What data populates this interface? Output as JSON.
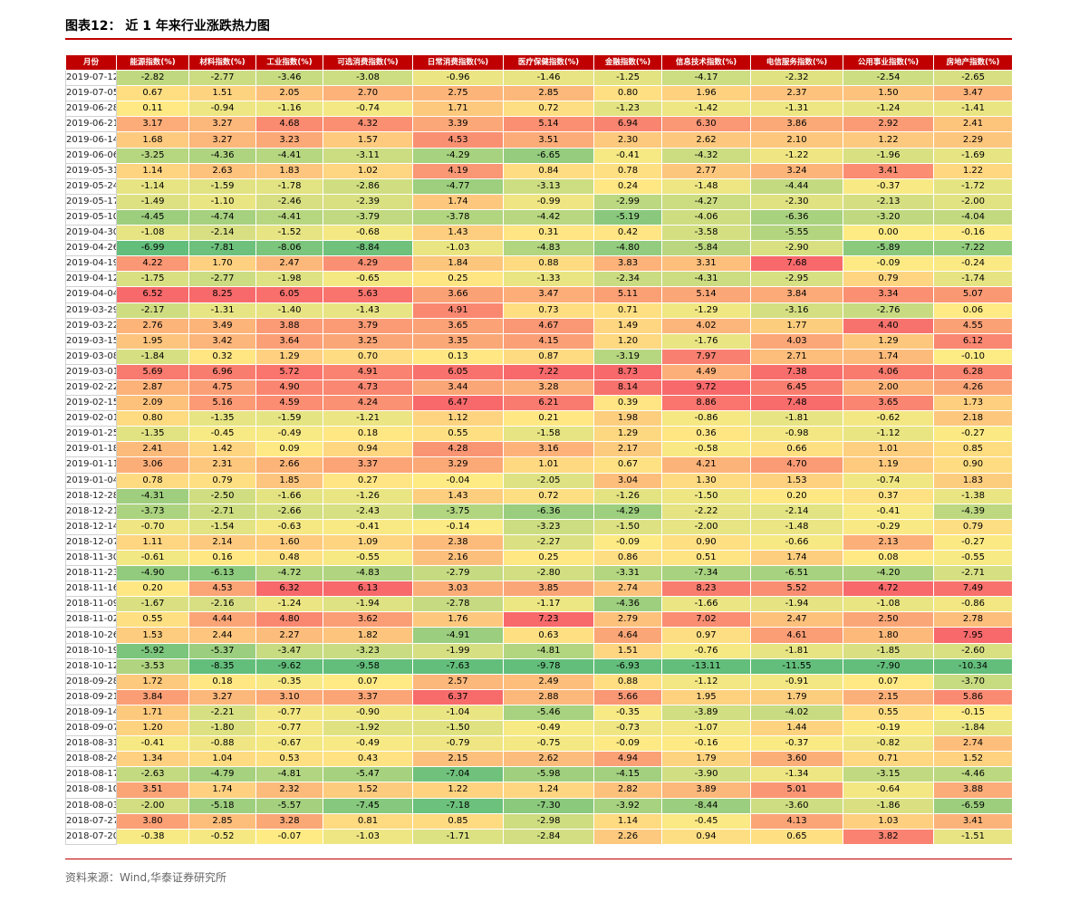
{
  "header": {
    "title": "图表12：  近 1 年来行业涨跌热力图"
  },
  "table": {
    "header": [
      "月份",
      "能源指数(%)",
      "材料指数(%)",
      "工业指数(%)",
      "可选消费指数(%)",
      "日常消费指数(%)",
      "医疗保健指数(%)",
      "金融指数(%)",
      "信息技术指数(%)",
      "电信服务指数(%)",
      "公用事业指数(%)",
      "房地产指数(%)"
    ],
    "rows": [
      [
        "2019-07-12",
        "-2.82",
        "-2.77",
        "-3.46",
        "-3.08",
        "-0.96",
        "-1.46",
        "-1.25",
        "-4.17",
        "-2.32",
        "-2.54",
        "-2.65"
      ],
      [
        "2019-07-05",
        "0.67",
        "1.51",
        "2.05",
        "2.70",
        "2.75",
        "2.85",
        "0.80",
        "1.96",
        "2.37",
        "1.50",
        "3.47"
      ],
      [
        "2019-06-28",
        "0.11",
        "-0.94",
        "-1.16",
        "-0.74",
        "1.71",
        "0.72",
        "-1.23",
        "-1.42",
        "-1.31",
        "-1.24",
        "-1.41"
      ],
      [
        "2019-06-21",
        "3.17",
        "3.27",
        "4.68",
        "4.32",
        "3.39",
        "5.14",
        "6.94",
        "6.30",
        "3.86",
        "2.92",
        "2.41"
      ],
      [
        "2019-06-14",
        "1.68",
        "3.27",
        "3.23",
        "1.57",
        "4.53",
        "3.51",
        "2.30",
        "2.62",
        "2.10",
        "1.22",
        "2.29"
      ],
      [
        "2019-06-06",
        "-3.25",
        "-4.36",
        "-4.41",
        "-3.11",
        "-4.29",
        "-6.65",
        "-0.41",
        "-4.32",
        "-1.22",
        "-1.96",
        "-1.69"
      ],
      [
        "2019-05-31",
        "1.14",
        "2.63",
        "1.83",
        "1.02",
        "4.19",
        "0.84",
        "0.78",
        "2.77",
        "3.24",
        "3.41",
        "1.22"
      ],
      [
        "2019-05-24",
        "-1.14",
        "-1.59",
        "-1.78",
        "-2.86",
        "-4.77",
        "-3.13",
        "0.24",
        "-1.48",
        "-4.44",
        "-0.37",
        "-1.72"
      ],
      [
        "2019-05-17",
        "-1.49",
        "-1.10",
        "-2.46",
        "-2.39",
        "1.74",
        "-0.99",
        "-2.99",
        "-4.27",
        "-2.30",
        "-2.13",
        "-2.00"
      ],
      [
        "2019-05-10",
        "-4.45",
        "-4.74",
        "-4.41",
        "-3.79",
        "-3.78",
        "-4.42",
        "-5.19",
        "-4.06",
        "-6.36",
        "-3.20",
        "-4.04"
      ],
      [
        "2019-04-30",
        "-1.08",
        "-2.14",
        "-1.52",
        "-0.68",
        "1.43",
        "0.31",
        "0.42",
        "-3.58",
        "-5.55",
        "0.00",
        "-0.16"
      ],
      [
        "2019-04-26",
        "-6.99",
        "-7.81",
        "-8.06",
        "-8.84",
        "-1.03",
        "-4.83",
        "-4.80",
        "-5.84",
        "-2.90",
        "-5.89",
        "-7.22"
      ],
      [
        "2019-04-19",
        "4.22",
        "1.70",
        "2.47",
        "4.29",
        "1.84",
        "0.88",
        "3.83",
        "3.31",
        "7.68",
        "-0.09",
        "-0.24"
      ],
      [
        "2019-04-12",
        "-1.75",
        "-2.77",
        "-1.98",
        "-0.65",
        "0.25",
        "-1.33",
        "-2.34",
        "-4.31",
        "-2.95",
        "0.79",
        "-1.74"
      ],
      [
        "2019-04-04",
        "6.52",
        "8.25",
        "6.05",
        "5.63",
        "3.66",
        "3.47",
        "5.11",
        "5.14",
        "3.84",
        "3.34",
        "5.07"
      ],
      [
        "2019-03-29",
        "-2.17",
        "-1.31",
        "-1.40",
        "-1.43",
        "4.91",
        "0.73",
        "0.71",
        "-1.29",
        "-3.16",
        "-2.76",
        "0.06"
      ],
      [
        "2019-03-22",
        "2.76",
        "3.49",
        "3.88",
        "3.79",
        "3.65",
        "4.67",
        "1.49",
        "4.02",
        "1.77",
        "4.40",
        "4.55"
      ],
      [
        "2019-03-15",
        "1.95",
        "3.42",
        "3.64",
        "3.25",
        "3.35",
        "4.15",
        "1.20",
        "-1.76",
        "4.03",
        "1.29",
        "6.12"
      ],
      [
        "2019-03-08",
        "-1.84",
        "0.32",
        "1.29",
        "0.70",
        "0.13",
        "0.87",
        "-3.19",
        "7.97",
        "2.71",
        "1.74",
        "-0.10"
      ],
      [
        "2019-03-01",
        "5.69",
        "6.96",
        "5.72",
        "4.91",
        "6.05",
        "7.22",
        "8.73",
        "4.49",
        "7.38",
        "4.06",
        "6.28"
      ],
      [
        "2019-02-22",
        "2.87",
        "4.75",
        "4.90",
        "4.73",
        "3.44",
        "3.28",
        "8.14",
        "9.72",
        "6.45",
        "2.00",
        "4.26"
      ],
      [
        "2019-02-15",
        "2.09",
        "5.16",
        "4.59",
        "4.24",
        "6.47",
        "6.21",
        "0.39",
        "8.86",
        "7.48",
        "3.65",
        "1.73"
      ],
      [
        "2019-02-01",
        "0.80",
        "-1.35",
        "-1.59",
        "-1.21",
        "1.12",
        "0.21",
        "1.98",
        "-0.86",
        "-1.81",
        "-0.62",
        "2.18"
      ],
      [
        "2019-01-25",
        "-1.35",
        "-0.45",
        "-0.49",
        "0.18",
        "0.55",
        "-1.58",
        "1.29",
        "0.36",
        "-0.98",
        "-1.12",
        "-0.27"
      ],
      [
        "2019-01-18",
        "2.41",
        "1.42",
        "0.09",
        "0.94",
        "4.28",
        "3.16",
        "2.17",
        "-0.58",
        "0.66",
        "1.01",
        "0.85"
      ],
      [
        "2019-01-11",
        "3.06",
        "2.31",
        "2.66",
        "3.37",
        "3.29",
        "1.01",
        "0.67",
        "4.21",
        "4.70",
        "1.19",
        "0.90"
      ],
      [
        "2019-01-04",
        "0.78",
        "0.79",
        "1.85",
        "0.27",
        "-0.04",
        "-2.05",
        "3.04",
        "1.30",
        "1.53",
        "-0.74",
        "1.83"
      ],
      [
        "2018-12-28",
        "-4.31",
        "-2.50",
        "-1.66",
        "-1.26",
        "1.43",
        "0.72",
        "-1.26",
        "-1.50",
        "0.20",
        "0.37",
        "-1.38"
      ],
      [
        "2018-12-21",
        "-3.73",
        "-2.71",
        "-2.66",
        "-2.43",
        "-3.75",
        "-6.36",
        "-4.29",
        "-2.22",
        "-2.14",
        "-0.41",
        "-4.39"
      ],
      [
        "2018-12-14",
        "-0.70",
        "-1.54",
        "-0.63",
        "-0.41",
        "-0.14",
        "-3.23",
        "-1.50",
        "-2.00",
        "-1.48",
        "-0.29",
        "0.79"
      ],
      [
        "2018-12-07",
        "1.11",
        "2.14",
        "1.60",
        "1.09",
        "2.38",
        "-2.27",
        "-0.09",
        "0.90",
        "-0.66",
        "2.13",
        "-0.27"
      ],
      [
        "2018-11-30",
        "-0.61",
        "0.16",
        "0.48",
        "-0.55",
        "2.16",
        "0.25",
        "0.86",
        "0.51",
        "1.74",
        "0.08",
        "-0.55"
      ],
      [
        "2018-11-23",
        "-4.90",
        "-6.13",
        "-4.72",
        "-4.83",
        "-2.79",
        "-2.80",
        "-3.31",
        "-7.34",
        "-6.51",
        "-4.20",
        "-2.71"
      ],
      [
        "2018-11-16",
        "0.20",
        "4.53",
        "6.32",
        "6.13",
        "3.03",
        "3.85",
        "2.74",
        "8.23",
        "5.52",
        "4.72",
        "7.49"
      ],
      [
        "2018-11-09",
        "-1.67",
        "-2.16",
        "-1.24",
        "-1.94",
        "-2.78",
        "-1.17",
        "-4.36",
        "-1.66",
        "-1.94",
        "-1.08",
        "-0.86"
      ],
      [
        "2018-11-02",
        "0.55",
        "4.44",
        "4.80",
        "3.62",
        "1.76",
        "7.23",
        "2.79",
        "7.02",
        "2.47",
        "2.50",
        "2.78"
      ],
      [
        "2018-10-26",
        "1.53",
        "2.44",
        "2.27",
        "1.82",
        "-4.91",
        "0.63",
        "4.64",
        "0.97",
        "4.61",
        "1.80",
        "7.95"
      ],
      [
        "2018-10-19",
        "-5.92",
        "-5.37",
        "-3.47",
        "-3.23",
        "-1.99",
        "-4.81",
        "1.51",
        "-0.76",
        "-1.81",
        "-1.85",
        "-2.60"
      ],
      [
        "2018-10-12",
        "-3.53",
        "-8.35",
        "-9.62",
        "-9.58",
        "-7.63",
        "-9.78",
        "-6.93",
        "-13.11",
        "-11.55",
        "-7.90",
        "-10.34"
      ],
      [
        "2018-09-28",
        "1.72",
        "0.18",
        "-0.35",
        "0.07",
        "2.57",
        "2.49",
        "0.88",
        "-1.12",
        "-0.91",
        "0.07",
        "-3.70"
      ],
      [
        "2018-09-21",
        "3.84",
        "3.27",
        "3.10",
        "3.37",
        "6.37",
        "2.88",
        "5.66",
        "1.95",
        "1.79",
        "2.15",
        "5.86"
      ],
      [
        "2018-09-14",
        "1.71",
        "-2.21",
        "-0.77",
        "-0.90",
        "-1.04",
        "-5.46",
        "-0.35",
        "-3.89",
        "-4.02",
        "0.55",
        "-0.15"
      ],
      [
        "2018-09-07",
        "1.20",
        "-1.80",
        "-0.77",
        "-1.92",
        "-1.50",
        "-0.49",
        "-0.73",
        "-1.07",
        "1.44",
        "-0.19",
        "-1.84"
      ],
      [
        "2018-08-31",
        "-0.41",
        "-0.88",
        "-0.67",
        "-0.49",
        "-0.79",
        "-0.75",
        "-0.09",
        "-0.16",
        "-0.37",
        "-0.82",
        "2.74"
      ],
      [
        "2018-08-24",
        "1.34",
        "1.04",
        "0.53",
        "0.43",
        "2.15",
        "2.62",
        "4.94",
        "1.79",
        "3.60",
        "0.71",
        "1.52"
      ],
      [
        "2018-08-17",
        "-2.63",
        "-4.79",
        "-4.81",
        "-5.47",
        "-7.04",
        "-5.98",
        "-4.15",
        "-3.90",
        "-1.34",
        "-3.15",
        "-4.46"
      ],
      [
        "2018-08-10",
        "3.51",
        "1.74",
        "2.32",
        "1.52",
        "1.22",
        "1.24",
        "2.82",
        "3.89",
        "5.01",
        "-0.64",
        "3.88"
      ],
      [
        "2018-08-03",
        "-2.00",
        "-5.18",
        "-5.57",
        "-7.45",
        "-7.18",
        "-7.30",
        "-3.92",
        "-8.44",
        "-3.60",
        "-1.86",
        "-6.59"
      ],
      [
        "2018-07-27",
        "3.80",
        "2.85",
        "3.28",
        "0.81",
        "0.85",
        "-2.98",
        "1.14",
        "-0.45",
        "4.13",
        "1.03",
        "3.41"
      ],
      [
        "2018-07-20",
        "-0.38",
        "-0.52",
        "-0.07",
        "-1.03",
        "-1.71",
        "-2.84",
        "2.26",
        "0.94",
        "0.65",
        "3.82",
        "-1.51"
      ]
    ]
  },
  "footer": {
    "source": "资料来源：Wind,华泰证券研究所"
  }
}
